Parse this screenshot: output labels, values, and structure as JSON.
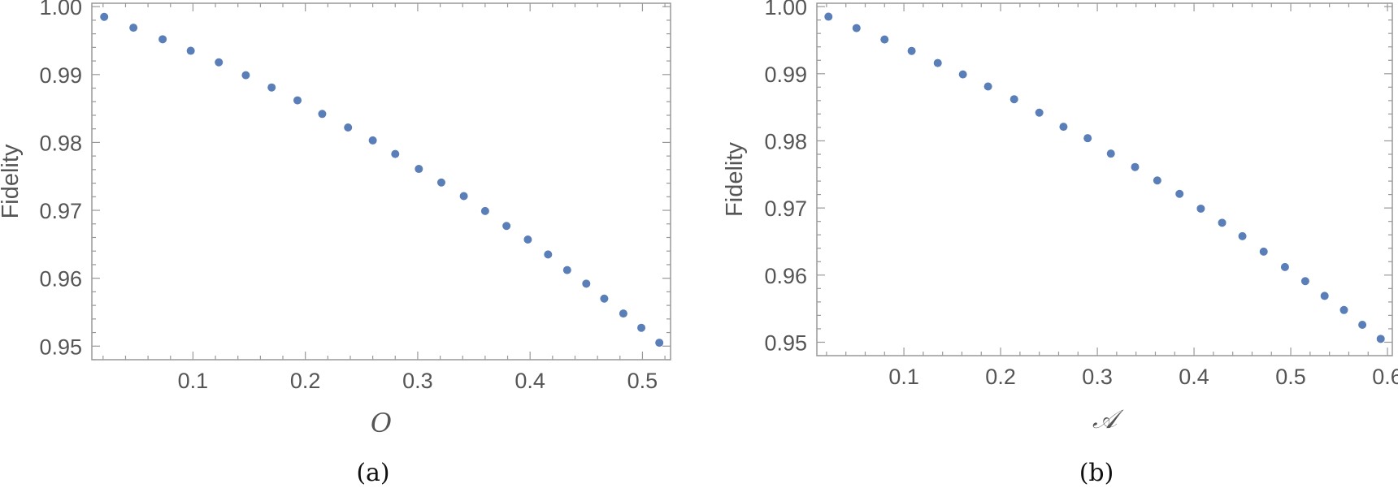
{
  "chart_data": [
    {
      "type": "scatter",
      "caption": "(a)",
      "xlabel": "O",
      "ylabel": "Fidelity",
      "xlim": [
        0.01,
        0.525
      ],
      "ylim": [
        0.948,
        1.0005
      ],
      "xticks": [
        0.1,
        0.2,
        0.3,
        0.4,
        0.5
      ],
      "xtick_labels": [
        "0.1",
        "0.2",
        "0.3",
        "0.4",
        "0.5"
      ],
      "yticks": [
        0.95,
        0.96,
        0.97,
        0.98,
        0.99,
        1.0
      ],
      "ytick_labels": [
        "0.95",
        "0.96",
        "0.97",
        "0.98",
        "0.99",
        "1.00"
      ],
      "grid": false,
      "color": "#5a7eb8",
      "points": [
        [
          0.021,
          0.9985
        ],
        [
          0.047,
          0.9969
        ],
        [
          0.073,
          0.9952
        ],
        [
          0.098,
          0.9935
        ],
        [
          0.123,
          0.9918
        ],
        [
          0.147,
          0.9899
        ],
        [
          0.17,
          0.9881
        ],
        [
          0.193,
          0.9862
        ],
        [
          0.215,
          0.9842
        ],
        [
          0.238,
          0.9822
        ],
        [
          0.26,
          0.9803
        ],
        [
          0.28,
          0.9783
        ],
        [
          0.301,
          0.9761
        ],
        [
          0.321,
          0.9741
        ],
        [
          0.341,
          0.9721
        ],
        [
          0.36,
          0.9699
        ],
        [
          0.379,
          0.9677
        ],
        [
          0.398,
          0.9657
        ],
        [
          0.416,
          0.9635
        ],
        [
          0.433,
          0.9612
        ],
        [
          0.45,
          0.9592
        ],
        [
          0.466,
          0.957
        ],
        [
          0.483,
          0.9548
        ],
        [
          0.499,
          0.9527
        ],
        [
          0.515,
          0.9505
        ]
      ]
    },
    {
      "type": "scatter",
      "caption": "(b)",
      "xlabel": "𝒜",
      "ylabel": "Fidelity",
      "xlim": [
        0.01,
        0.605
      ],
      "ylim": [
        0.948,
        1.0005
      ],
      "xticks": [
        0.1,
        0.2,
        0.3,
        0.4,
        0.5,
        0.6
      ],
      "xtick_labels": [
        "0.1",
        "0.2",
        "0.3",
        "0.4",
        "0.5",
        "0.6"
      ],
      "yticks": [
        0.95,
        0.96,
        0.97,
        0.98,
        0.99,
        1.0
      ],
      "ytick_labels": [
        "0.95",
        "0.96",
        "0.97",
        "0.98",
        "0.99",
        "1.00"
      ],
      "grid": false,
      "color": "#5a7eb8",
      "points": [
        [
          0.022,
          0.9985
        ],
        [
          0.051,
          0.9968
        ],
        [
          0.08,
          0.9951
        ],
        [
          0.108,
          0.9934
        ],
        [
          0.135,
          0.9916
        ],
        [
          0.161,
          0.9899
        ],
        [
          0.187,
          0.9881
        ],
        [
          0.214,
          0.9862
        ],
        [
          0.24,
          0.9842
        ],
        [
          0.265,
          0.9821
        ],
        [
          0.29,
          0.9804
        ],
        [
          0.314,
          0.9781
        ],
        [
          0.339,
          0.9761
        ],
        [
          0.362,
          0.9741
        ],
        [
          0.385,
          0.9721
        ],
        [
          0.407,
          0.9699
        ],
        [
          0.429,
          0.9678
        ],
        [
          0.45,
          0.9658
        ],
        [
          0.472,
          0.9635
        ],
        [
          0.494,
          0.9612
        ],
        [
          0.515,
          0.9591
        ],
        [
          0.535,
          0.9569
        ],
        [
          0.555,
          0.9548
        ],
        [
          0.574,
          0.9526
        ],
        [
          0.593,
          0.9505
        ]
      ]
    }
  ]
}
